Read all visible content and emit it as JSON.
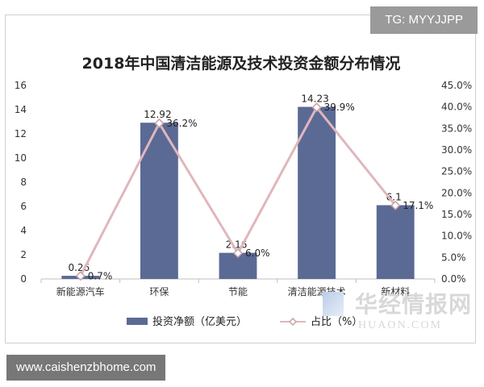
{
  "overlay_tag": "TG: MYYJJPP",
  "footer_url": "www.caishenzbhome.com",
  "watermark": {
    "cn": "华经情报网",
    "en": "HUAON.COM"
  },
  "chart_data": {
    "type": "bar",
    "title": "2018年中国清洁能源及技术投资金额分布情况",
    "categories": [
      "新能源汽车",
      "环保",
      "节能",
      "清洁能源技术",
      "新材料"
    ],
    "series": [
      {
        "name": "投资净额（亿美元）",
        "type": "bar",
        "axis": "left",
        "values": [
          0.26,
          12.92,
          2.16,
          14.23,
          6.1
        ],
        "labels": [
          "0.26",
          "12.92",
          "2.16",
          "14.23",
          "6.1"
        ],
        "color": "#5b6a94"
      },
      {
        "name": "占比（%）",
        "type": "line",
        "axis": "right",
        "values": [
          0.7,
          36.2,
          6.0,
          39.9,
          17.1
        ],
        "labels": [
          "0.7%",
          "36.2%",
          "6.0%",
          "39.9%",
          "17.1%"
        ],
        "color": "#e0b7bc"
      }
    ],
    "y_left": {
      "min": 0,
      "max": 16,
      "ticks": [
        "0",
        "2",
        "4",
        "6",
        "8",
        "10",
        "12",
        "14",
        "16"
      ]
    },
    "y_right": {
      "min": 0,
      "max": 45,
      "ticks": [
        "0.0%",
        "5.0%",
        "10.0%",
        "15.0%",
        "20.0%",
        "25.0%",
        "30.0%",
        "35.0%",
        "40.0%",
        "45.0%"
      ]
    },
    "grid": false,
    "legend_position": "bottom"
  }
}
